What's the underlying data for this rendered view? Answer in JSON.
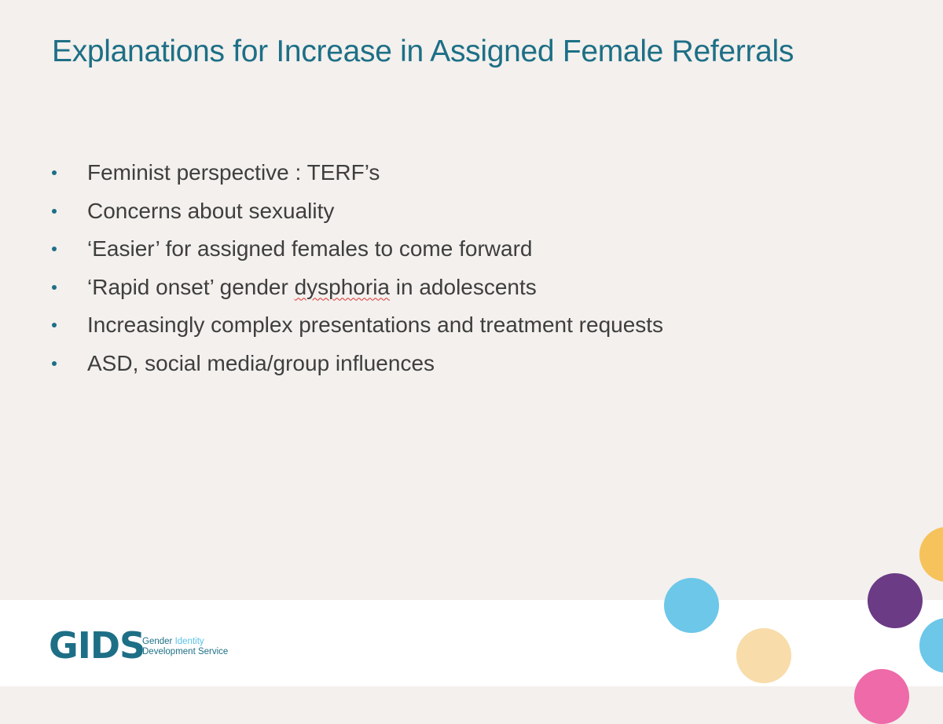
{
  "slide": {
    "title": "Explanations for Increase in Assigned Female Referrals",
    "bullets": [
      "Feminist perspective : TERF’s",
      "Concerns about sexuality",
      "‘Easier’ for assigned females to come forward",
      "Increasingly complex presentations and treatment requests",
      "ASD, social media/group influences"
    ],
    "bullet_4": {
      "before": "‘Rapid onset’ gender ",
      "misspelled": "dysphoria",
      "after": " in adolescents"
    }
  },
  "logo": {
    "mark": "GIDS",
    "line1_a": "Gender",
    "line1_b": "Identity",
    "line2": "Development Service"
  },
  "colors": {
    "title": "#1d6f86",
    "body_text": "#3e3e3e",
    "background": "#f3f0ed",
    "footer": "#ffffff",
    "dots": [
      "#6cc7e9",
      "#f8dcaa",
      "#6b3b85",
      "#f6c25b",
      "#6cc7e9",
      "#ee6aa8"
    ]
  }
}
